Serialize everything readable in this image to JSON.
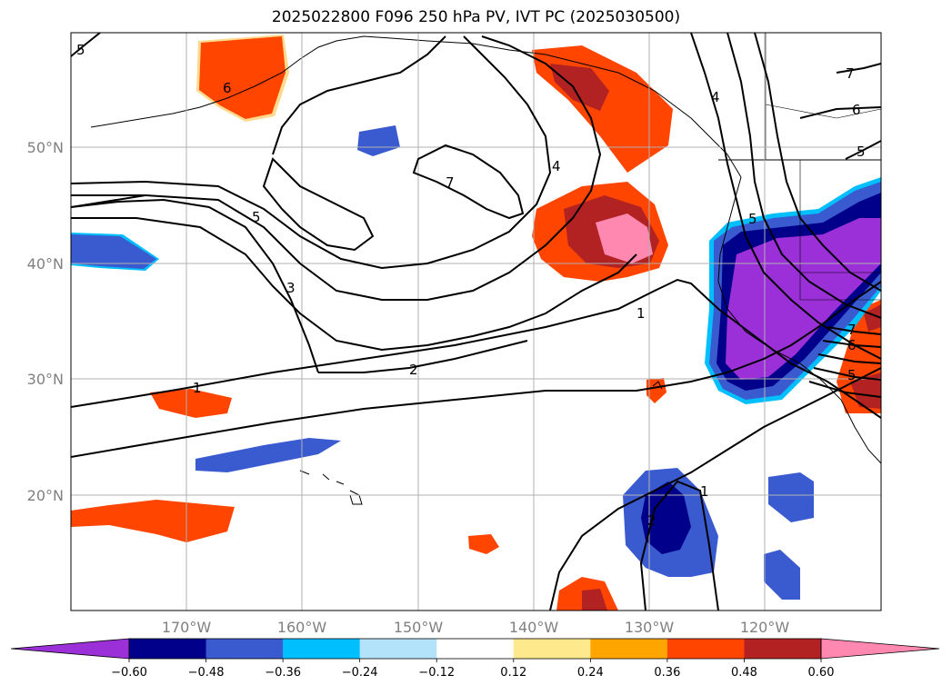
{
  "chart_data": {
    "type": "map-contour",
    "title": "2025022800 F096 250 hPa PV, IVT PC (2025030500)",
    "lon_range": [
      -180,
      -110
    ],
    "lat_range": [
      10,
      60
    ],
    "lat_ticks": [
      "50°N",
      "40°N",
      "30°N",
      "20°N"
    ],
    "lon_ticks": [
      "170°W",
      "160°W",
      "150°W",
      "140°W",
      "130°W",
      "120°W"
    ],
    "colorbar": {
      "levels": [
        "−0.60",
        "−0.48",
        "−0.36",
        "−0.24",
        "−0.12",
        "0.12",
        "0.24",
        "0.36",
        "0.48",
        "0.60"
      ],
      "colors": [
        "#9b30d9",
        "#00008b",
        "#3a5bd0",
        "#00bfff",
        "#b3e3fb",
        "#ffffff",
        "#fee98c",
        "#ffa500",
        "#ff4500",
        "#b22222",
        "#ff88b0"
      ],
      "extend": "both"
    },
    "contour_labels": [
      "1",
      "2",
      "3",
      "4",
      "5",
      "6",
      "7"
    ],
    "grid": true
  }
}
